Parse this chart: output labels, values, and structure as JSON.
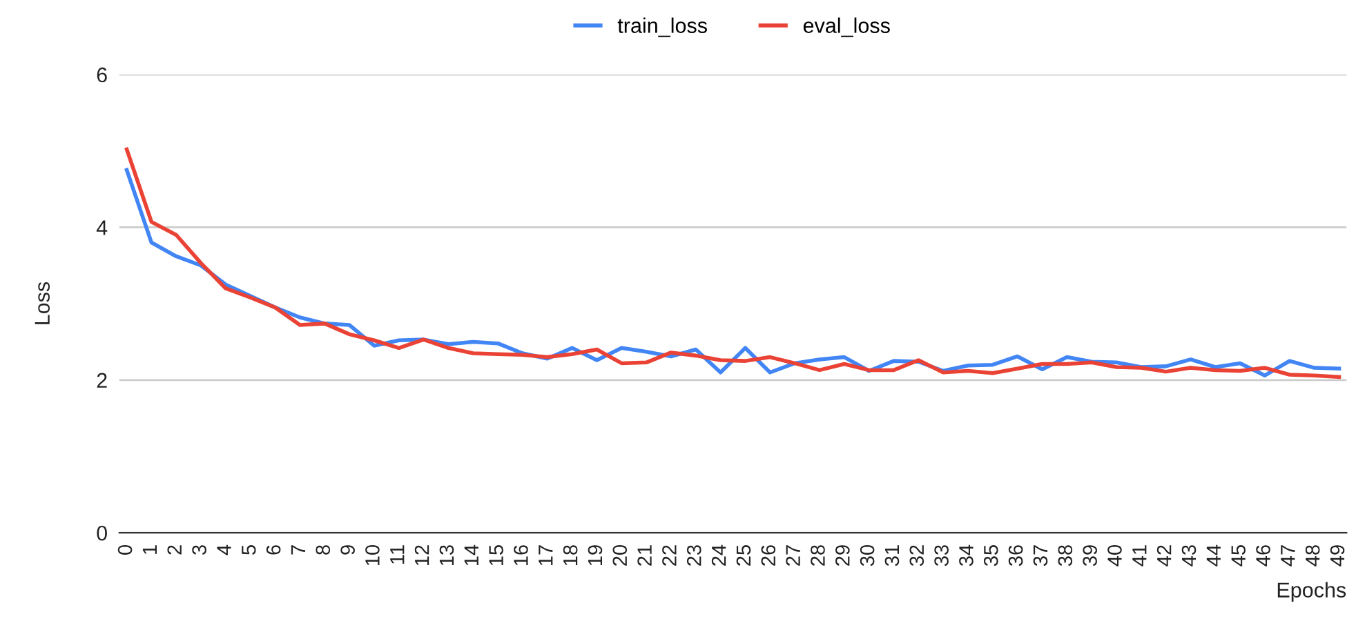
{
  "chart_data": {
    "type": "line",
    "xlabel": "Epochs",
    "ylabel": "Loss",
    "categories": [
      "0",
      "1",
      "2",
      "3",
      "4",
      "5",
      "6",
      "7",
      "8",
      "9",
      "10",
      "11",
      "12",
      "13",
      "14",
      "15",
      "16",
      "17",
      "18",
      "19",
      "20",
      "21",
      "22",
      "23",
      "24",
      "25",
      "26",
      "27",
      "28",
      "29",
      "30",
      "31",
      "32",
      "33",
      "34",
      "35",
      "36",
      "37",
      "38",
      "39",
      "40",
      "41",
      "42",
      "43",
      "44",
      "45",
      "46",
      "47",
      "48",
      "49"
    ],
    "series": [
      {
        "name": "train_loss",
        "color": "#4285f4",
        "values": [
          4.75,
          3.8,
          3.62,
          3.5,
          3.25,
          3.1,
          2.95,
          2.82,
          2.74,
          2.72,
          2.45,
          2.52,
          2.53,
          2.47,
          2.5,
          2.48,
          2.35,
          2.28,
          2.42,
          2.26,
          2.42,
          2.37,
          2.31,
          2.4,
          2.1,
          2.42,
          2.1,
          2.22,
          2.27,
          2.3,
          2.12,
          2.25,
          2.24,
          2.12,
          2.19,
          2.2,
          2.31,
          2.14,
          2.3,
          2.24,
          2.23,
          2.17,
          2.18,
          2.27,
          2.17,
          2.22,
          2.06,
          2.25,
          2.16,
          2.15
        ]
      },
      {
        "name": "eval_loss",
        "color": "#ea4335",
        "values": [
          5.02,
          4.07,
          3.9,
          3.53,
          3.2,
          3.08,
          2.95,
          2.72,
          2.74,
          2.6,
          2.52,
          2.42,
          2.53,
          2.42,
          2.35,
          2.34,
          2.33,
          2.3,
          2.34,
          2.4,
          2.22,
          2.23,
          2.36,
          2.32,
          2.26,
          2.25,
          2.3,
          2.22,
          2.13,
          2.21,
          2.13,
          2.13,
          2.26,
          2.1,
          2.12,
          2.09,
          2.15,
          2.21,
          2.21,
          2.23,
          2.17,
          2.16,
          2.11,
          2.16,
          2.13,
          2.12,
          2.16,
          2.07,
          2.06,
          2.04
        ]
      }
    ],
    "ylim": [
      0,
      6
    ],
    "yticks": [
      0,
      2,
      4,
      6
    ],
    "grid": "y",
    "legend": "top",
    "marker": "none",
    "line_style": "solid"
  }
}
